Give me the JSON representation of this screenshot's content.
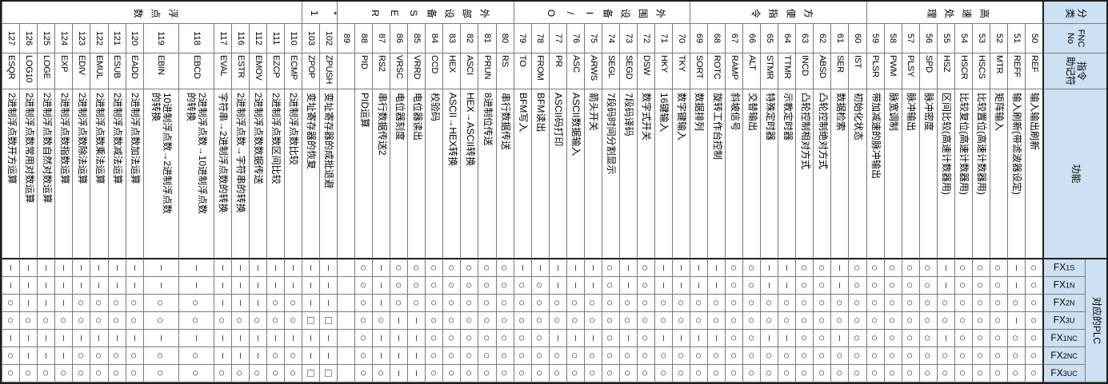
{
  "header": {
    "category": "分类",
    "fnc_no": "FNC\nNo",
    "mnemonic": "指令\n助记符",
    "function": "功能",
    "plc_group": "对应的PLC",
    "plc_models": [
      {
        "base": "FX",
        "sub": "1S"
      },
      {
        "base": "FX",
        "sub": "1N"
      },
      {
        "base": "FX",
        "sub": "2N"
      },
      {
        "base": "FX",
        "sub": "3U"
      },
      {
        "base": "FX",
        "sub": "1NC"
      },
      {
        "base": "FX",
        "sub": "2NC"
      },
      {
        "base": "FX",
        "sub": "3UC"
      }
    ]
  },
  "colors": {
    "header_bg": "#cde0f4",
    "grid_line": "#7a7a7a",
    "frame": "#1f1f1f"
  },
  "symbols": {
    "o": "○",
    "-": "–",
    "s": "□",
    "": ""
  },
  "categories": [
    {
      "label": "高速处理",
      "span": 10
    },
    {
      "label": "方便指令",
      "span": 10
    },
    {
      "label": "外围设备I/O",
      "span": 10
    },
    {
      "label": "外部设备SER",
      "span": 10
    },
    {
      "label": "*1",
      "span": 2
    },
    {
      "label": "浮点数",
      "span": 15
    }
  ],
  "rows": [
    {
      "fnc": "50",
      "mn": "REF",
      "fn": "输入输出刷新",
      "m": [
        "o",
        "o",
        "o",
        "o",
        "o",
        "o",
        "o"
      ]
    },
    {
      "fnc": "51",
      "mn": "REFF",
      "fn": "输入刷新(带滤波器设定)",
      "m": [
        "-",
        "-",
        "o",
        "-",
        "o",
        "o",
        "o"
      ]
    },
    {
      "fnc": "52",
      "mn": "MTR",
      "fn": "矩阵输入",
      "m": [
        "o",
        "o",
        "o",
        "o",
        "o",
        "o",
        "o"
      ]
    },
    {
      "fnc": "53",
      "mn": "HSCS",
      "fn": "比较置位(高速计数器用)",
      "m": [
        "o",
        "o",
        "o",
        "o",
        "o",
        "o",
        "o"
      ]
    },
    {
      "fnc": "54",
      "mn": "HSCR",
      "fn": "比较复位(高速计数器用)",
      "m": [
        "o",
        "o",
        "o",
        "o",
        "o",
        "o",
        "o"
      ]
    },
    {
      "fnc": "55",
      "mn": "HSZ",
      "fn": "区间比较(高速计数器用)",
      "m": [
        "-",
        "-",
        "o",
        "o",
        "-",
        "o",
        "o"
      ]
    },
    {
      "fnc": "56",
      "mn": "SPD",
      "fn": "脉冲密度",
      "m": [
        "o",
        "o",
        "o",
        "o",
        "o",
        "o",
        "o"
      ]
    },
    {
      "fnc": "57",
      "mn": "PLSY",
      "fn": "脉冲输出",
      "m": [
        "o",
        "o",
        "o",
        "o",
        "o",
        "o",
        "o"
      ]
    },
    {
      "fnc": "58",
      "mn": "PWM",
      "fn": "脉宽调制",
      "m": [
        "o",
        "o",
        "o",
        "o",
        "o",
        "o",
        "o"
      ]
    },
    {
      "fnc": "59",
      "mn": "PLSR",
      "fn": "带加减速的脉冲输出",
      "m": [
        "o",
        "o",
        "o",
        "o",
        "o",
        "o",
        "o"
      ]
    },
    {
      "fnc": "60",
      "mn": "IST",
      "fn": "初始化状态",
      "m": [
        "o",
        "o",
        "o",
        "o",
        "o",
        "o",
        "o"
      ]
    },
    {
      "fnc": "61",
      "mn": "SER",
      "fn": "数据检索",
      "m": [
        "-",
        "-",
        "o",
        "o",
        "-",
        "o",
        "o"
      ]
    },
    {
      "fnc": "62",
      "mn": "ABSD",
      "fn": "凸轮控制绝对方式",
      "m": [
        "o",
        "o",
        "o",
        "o",
        "o",
        "o",
        "o"
      ]
    },
    {
      "fnc": "63",
      "mn": "INCD",
      "fn": "凸轮控制相对方式",
      "m": [
        "o",
        "o",
        "o",
        "o",
        "o",
        "o",
        "o"
      ]
    },
    {
      "fnc": "64",
      "mn": "TTMR",
      "fn": "示教定时器",
      "m": [
        "-",
        "-",
        "o",
        "o",
        "-",
        "o",
        "o"
      ]
    },
    {
      "fnc": "65",
      "mn": "STMR",
      "fn": "特殊定时器",
      "m": [
        "-",
        "-",
        "o",
        "o",
        "-",
        "o",
        "o"
      ]
    },
    {
      "fnc": "66",
      "mn": "ALT",
      "fn": "交替输出",
      "m": [
        "o",
        "o",
        "o",
        "o",
        "o",
        "o",
        "o"
      ]
    },
    {
      "fnc": "67",
      "mn": "RAMP",
      "fn": "斜坡信号",
      "m": [
        "o",
        "o",
        "o",
        "o",
        "o",
        "o",
        "o"
      ]
    },
    {
      "fnc": "68",
      "mn": "ROTC",
      "fn": "旋转工作台控制",
      "m": [
        "-",
        "-",
        "o",
        "o",
        "-",
        "o",
        "o"
      ]
    },
    {
      "fnc": "69",
      "mn": "SORT",
      "fn": "数据排列",
      "m": [
        "-",
        "-",
        "o",
        "o",
        "-",
        "o",
        "o"
      ]
    },
    {
      "fnc": "70",
      "mn": "TKY",
      "fn": "数字键输入",
      "m": [
        "-",
        "-",
        "o",
        "o",
        "-",
        "o",
        "o"
      ]
    },
    {
      "fnc": "71",
      "mn": "HKY",
      "fn": "16键输入",
      "m": [
        "-",
        "-",
        "o",
        "o",
        "-",
        "o",
        "o"
      ]
    },
    {
      "fnc": "72",
      "mn": "DSW",
      "fn": "数字式开关",
      "m": [
        "o",
        "o",
        "o",
        "o",
        "o",
        "o",
        "o"
      ]
    },
    {
      "fnc": "73",
      "mn": "SEGD",
      "fn": "7段码译码",
      "m": [
        "-",
        "-",
        "o",
        "o",
        "-",
        "o",
        "o"
      ]
    },
    {
      "fnc": "74",
      "mn": "SEGL",
      "fn": "7段码时间分割显示",
      "m": [
        "o",
        "o",
        "o",
        "o",
        "o",
        "o",
        "o"
      ]
    },
    {
      "fnc": "75",
      "mn": "ARWS",
      "fn": "箭头开关",
      "m": [
        "-",
        "-",
        "o",
        "o",
        "-",
        "o",
        "o"
      ]
    },
    {
      "fnc": "76",
      "mn": "ASC",
      "fn": "ASCII数据输入",
      "m": [
        "-",
        "-",
        "o",
        "o",
        "-",
        "o",
        "o"
      ]
    },
    {
      "fnc": "77",
      "mn": "PR",
      "fn": "ASCII码打印",
      "m": [
        "-",
        "-",
        "o",
        "o",
        "-",
        "o",
        "o"
      ]
    },
    {
      "fnc": "78",
      "mn": "FROM",
      "fn": "BFM读出",
      "m": [
        "-",
        "o",
        "o",
        "o",
        "o",
        "o",
        "o"
      ]
    },
    {
      "fnc": "79",
      "mn": "TO",
      "fn": "BFM写入",
      "m": [
        "-",
        "o",
        "o",
        "o",
        "o",
        "o",
        "o"
      ]
    },
    {
      "fnc": "80",
      "mn": "RS",
      "fn": "串行数据传送",
      "m": [
        "o",
        "o",
        "o",
        "o",
        "o",
        "o",
        "o"
      ]
    },
    {
      "fnc": "81",
      "mn": "PRUN",
      "fn": "8进制位传送",
      "m": [
        "o",
        "o",
        "o",
        "o",
        "o",
        "o",
        "o"
      ]
    },
    {
      "fnc": "82",
      "mn": "ASCI",
      "fn": "HEX→ASCII转换",
      "m": [
        "o",
        "o",
        "o",
        "o",
        "o",
        "o",
        "o"
      ]
    },
    {
      "fnc": "83",
      "mn": "HEX",
      "fn": "ASCII→HEX转换",
      "m": [
        "o",
        "o",
        "o",
        "o",
        "o",
        "o",
        "o"
      ]
    },
    {
      "fnc": "84",
      "mn": "CCD",
      "fn": "校验码",
      "m": [
        "o",
        "o",
        "o",
        "o",
        "o",
        "o",
        "o"
      ]
    },
    {
      "fnc": "85",
      "mn": "VRRD",
      "fn": "电位器读出",
      "m": [
        "o",
        "o",
        "o",
        "-",
        "-",
        "-",
        "-"
      ]
    },
    {
      "fnc": "86",
      "mn": "VRSC",
      "fn": "电位器刻度",
      "m": [
        "o",
        "o",
        "o",
        "-",
        "-",
        "-",
        "-"
      ]
    },
    {
      "fnc": "87",
      "mn": "RS2",
      "fn": "串行数据传送2",
      "m": [
        "-",
        "-",
        "-",
        "o",
        "-",
        "-",
        "o"
      ]
    },
    {
      "fnc": "88",
      "mn": "PID",
      "fn": "PID运算",
      "m": [
        "o",
        "o",
        "o",
        "o",
        "o",
        "o",
        "o"
      ]
    },
    {
      "fnc": "89",
      "mn": "",
      "fn": "",
      "m": [
        "",
        "",
        "",
        "",
        "",
        "",
        ""
      ]
    },
    {
      "fnc": "102",
      "mn": "ZPUSH",
      "fn": "变址寄存器的成批退避",
      "m": [
        "-",
        "-",
        "-",
        "s",
        "-",
        "-",
        "s"
      ]
    },
    {
      "fnc": "103",
      "mn": "ZPOP",
      "fn": "变址寄存器的恢复",
      "m": [
        "-",
        "-",
        "-",
        "s",
        "-",
        "-",
        "s"
      ]
    },
    {
      "fnc": "110",
      "mn": "ECMP",
      "fn": "2进制浮点数比较",
      "m": [
        "-",
        "-",
        "o",
        "o",
        "-",
        "o",
        "o"
      ]
    },
    {
      "fnc": "111",
      "mn": "EZCP",
      "fn": "2进制浮点数区间比较",
      "m": [
        "-",
        "-",
        "o",
        "o",
        "-",
        "o",
        "o"
      ]
    },
    {
      "fnc": "112",
      "mn": "EMOV",
      "fn": "2进制浮点数数据传送",
      "m": [
        "-",
        "-",
        "-",
        "o",
        "-",
        "-",
        "o"
      ]
    },
    {
      "fnc": "116",
      "mn": "ESTR",
      "fn": "2进制浮点数→字符串的转换",
      "m": [
        "-",
        "-",
        "-",
        "o",
        "-",
        "-",
        "o"
      ]
    },
    {
      "fnc": "117",
      "mn": "EVAL",
      "fn": "字符串→2进制浮点数的转换",
      "m": [
        "-",
        "-",
        "-",
        "o",
        "-",
        "-",
        "o"
      ]
    },
    {
      "fnc": "118",
      "mn": "EBCD",
      "fn": "2进制浮点数→10进制浮点数\n的转换",
      "tall": true,
      "m": [
        "-",
        "-",
        "o",
        "o",
        "-",
        "o",
        "o"
      ]
    },
    {
      "fnc": "119",
      "mn": "EBIN",
      "fn": "10进制浮点数→2进制浮点数\n的转换",
      "tall": true,
      "m": [
        "-",
        "-",
        "o",
        "o",
        "-",
        "o",
        "o"
      ]
    },
    {
      "fnc": "120",
      "mn": "EADD",
      "fn": "2进制浮点数加法运算",
      "m": [
        "-",
        "-",
        "o",
        "o",
        "-",
        "o",
        "o"
      ]
    },
    {
      "fnc": "121",
      "mn": "ESUB",
      "fn": "2进制浮点数减法运算",
      "m": [
        "-",
        "-",
        "o",
        "o",
        "-",
        "o",
        "o"
      ]
    },
    {
      "fnc": "122",
      "mn": "EMUL",
      "fn": "2进制浮点数乘法运算",
      "m": [
        "-",
        "-",
        "o",
        "o",
        "-",
        "o",
        "o"
      ]
    },
    {
      "fnc": "123",
      "mn": "EDIV",
      "fn": "2进制浮点数除法运算",
      "m": [
        "-",
        "-",
        "o",
        "o",
        "-",
        "o",
        "o"
      ]
    },
    {
      "fnc": "124",
      "mn": "EXP",
      "fn": "2进制浮点数指数运算",
      "m": [
        "-",
        "-",
        "-",
        "o",
        "-",
        "-",
        "o"
      ]
    },
    {
      "fnc": "125",
      "mn": "LOGE",
      "fn": "2进制浮点数自然对数运算",
      "m": [
        "-",
        "-",
        "-",
        "o",
        "-",
        "-",
        "o"
      ]
    },
    {
      "fnc": "126",
      "mn": "LOG10",
      "fn": "2进制浮点数常用对数运算",
      "m": [
        "-",
        "-",
        "-",
        "o",
        "-",
        "-",
        "o"
      ]
    },
    {
      "fnc": "127",
      "mn": "ESQR",
      "fn": "2进制浮点数开方运算",
      "m": [
        "-",
        "-",
        "o",
        "o",
        "-",
        "o",
        "o"
      ]
    }
  ]
}
